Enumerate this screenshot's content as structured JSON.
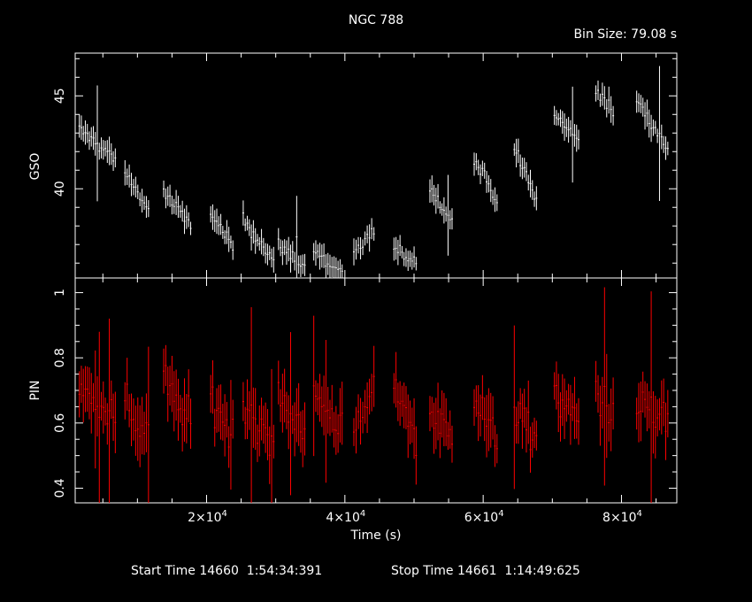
{
  "title": "NGC 788",
  "bin_size": "Bin Size: 79.08 s",
  "footer": {
    "start": "Start Time 14660  1:54:34:391",
    "stop": "Stop Time 14661  1:14:49:625"
  },
  "colors": {
    "background": "#000000",
    "axes": "#ffffff",
    "gso": "#ffffff",
    "pin": "#ff0000"
  },
  "chart_data": [
    {
      "type": "scatter",
      "panel": "top",
      "ylabel": "GSO",
      "xlim": [
        1000,
        88000
      ],
      "ylim": [
        35.2,
        47.3
      ],
      "yticks": [
        40,
        45
      ],
      "yticklabels": [
        "40",
        "45"
      ],
      "grid": false,
      "series": [
        {
          "color": "#ffffff",
          "segments": [
            {
              "x": [
                1600,
                6800
              ],
              "y": [
                43.2,
                41.6
              ]
            },
            {
              "x": [
                8200,
                11600
              ],
              "y": [
                40.9,
                38.9
              ]
            },
            {
              "x": [
                13800,
                17700
              ],
              "y": [
                39.8,
                38.0
              ]
            },
            {
              "x": [
                20600,
                23800
              ],
              "y": [
                38.7,
                36.8
              ]
            },
            {
              "x": [
                25300,
                29700
              ],
              "y": [
                38.4,
                36.1
              ]
            },
            {
              "x": [
                30400,
                34200
              ],
              "y": [
                37.0,
                35.8
              ]
            },
            {
              "x": [
                35500,
                39600
              ],
              "y": [
                36.7,
                35.3
              ]
            },
            {
              "x": [
                41300,
                44200
              ],
              "y": [
                36.5,
                37.7
              ]
            },
            {
              "x": [
                47100,
                50300
              ],
              "y": [
                36.7,
                36.1
              ]
            },
            {
              "x": [
                52300,
                55500
              ],
              "y": [
                40.1,
                38.2
              ]
            },
            {
              "x": [
                58700,
                62000
              ],
              "y": [
                41.6,
                39.4
              ]
            },
            {
              "x": [
                64500,
                67700
              ],
              "y": [
                42.1,
                39.4
              ]
            },
            {
              "x": [
                70300,
                73800
              ],
              "y": [
                44.0,
                42.6
              ]
            },
            {
              "x": [
                76300,
                78800
              ],
              "y": [
                45.4,
                44.1
              ]
            },
            {
              "x": [
                82200,
                86700
              ],
              "y": [
                44.7,
                42.2
              ]
            }
          ]
        }
      ]
    },
    {
      "type": "scatter",
      "panel": "bottom",
      "xlabel": "Time (s)",
      "ylabel": "PIN",
      "xlim": [
        1000,
        88000
      ],
      "ylim": [
        0.355,
        1.045
      ],
      "xticks": [
        20000,
        40000,
        60000,
        80000
      ],
      "xticklabels": [
        {
          "m": "2",
          "e": "4"
        },
        {
          "m": "4",
          "e": "4"
        },
        {
          "m": "6",
          "e": "4"
        },
        {
          "m": "8",
          "e": "4"
        }
      ],
      "xtick_times": "×10",
      "yticks": [
        0.4,
        0.6,
        0.8,
        1.0
      ],
      "yticklabels": [
        "0.4",
        "0.6",
        "0.8",
        "1"
      ],
      "grid": false,
      "series": [
        {
          "color": "#ff0000",
          "segments": [
            {
              "x": [
                1600,
                6800
              ],
              "y": [
                0.7,
                0.62
              ]
            },
            {
              "x": [
                8200,
                11600
              ],
              "y": [
                0.66,
                0.56
              ]
            },
            {
              "x": [
                13800,
                17700
              ],
              "y": [
                0.73,
                0.6
              ]
            },
            {
              "x": [
                20600,
                23800
              ],
              "y": [
                0.68,
                0.56
              ]
            },
            {
              "x": [
                25300,
                29700
              ],
              "y": [
                0.68,
                0.52
              ]
            },
            {
              "x": [
                30400,
                34200
              ],
              "y": [
                0.7,
                0.56
              ]
            },
            {
              "x": [
                35500,
                39600
              ],
              "y": [
                0.68,
                0.6
              ]
            },
            {
              "x": [
                41300,
                44200
              ],
              "y": [
                0.54,
                0.7
              ]
            },
            {
              "x": [
                47100,
                50300
              ],
              "y": [
                0.72,
                0.56
              ]
            },
            {
              "x": [
                52300,
                55500
              ],
              "y": [
                0.64,
                0.56
              ]
            },
            {
              "x": [
                58700,
                62000
              ],
              "y": [
                0.68,
                0.55
              ]
            },
            {
              "x": [
                64500,
                67700
              ],
              "y": [
                0.64,
                0.55
              ]
            },
            {
              "x": [
                70300,
                73800
              ],
              "y": [
                0.7,
                0.6
              ]
            },
            {
              "x": [
                76300,
                78800
              ],
              "y": [
                0.7,
                0.62
              ]
            },
            {
              "x": [
                82200,
                86700
              ],
              "y": [
                0.66,
                0.6
              ]
            }
          ]
        }
      ]
    }
  ]
}
